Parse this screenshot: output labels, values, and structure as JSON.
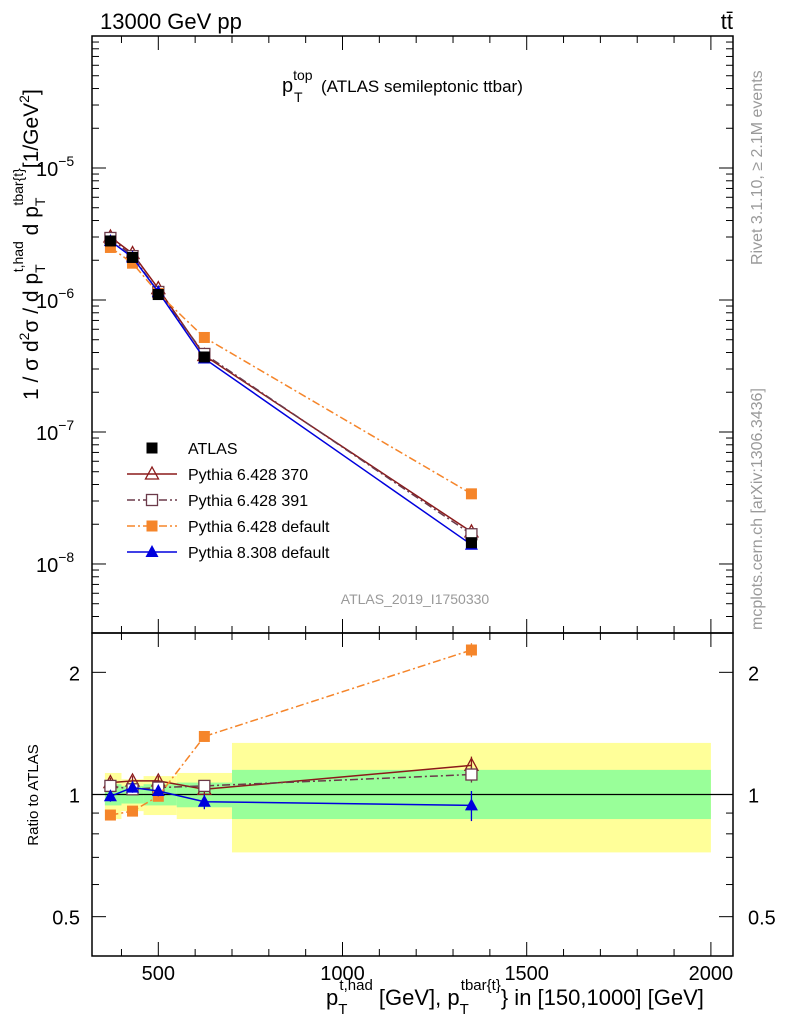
{
  "header": {
    "beam": "13000 GeV pp",
    "process": "tt̄"
  },
  "side_labels": {
    "rivet": "Rivet 3.1.10, ≥ 2.1M events",
    "mcplots": "mcplots.cern.ch [arXiv:1306.3436]"
  },
  "colors": {
    "atlas": "#000000",
    "py6_370": "#8b1a1a",
    "py6_391": "#6b3a4a",
    "py6_default": "#f5852a",
    "py8_default": "#0000dd",
    "band_inner": "#99ff99",
    "band_outer": "#ffff99",
    "watermark": "#9a9a9a"
  },
  "chart_data": [
    {
      "panel": "main",
      "type": "line",
      "scale": "log",
      "title_main": "p",
      "title_sup": "top",
      "title_sub": "T",
      "title_rest": "(ATLAS semileptonic ttbar)",
      "analysis_id": "ATLAS_2019_I1750330",
      "ylabel": "1 / σ d²σ / d p_T^{t,had} d p_T^{tbar{t}} [1/GeV²]",
      "ylabel_parts": {
        "a": "1 / σ d",
        "a_sup": "2",
        "b": "σ / d p",
        "b_sub": "T",
        "b_sup": "t,had",
        "c": " d p",
        "c_sub": "T",
        "c_sup": "tbar{t}",
        "d": "[1/GeV",
        "d_sup": "2",
        "e": "]"
      },
      "xlim": [
        320,
        2060
      ],
      "ylim": [
        3e-09,
        0.0001
      ],
      "yticks": [
        {
          "value": 1e-08,
          "base": "10",
          "exp": "−8"
        },
        {
          "value": 1e-07,
          "base": "10",
          "exp": "−7"
        },
        {
          "value": 1e-06,
          "base": "10",
          "exp": "−6"
        },
        {
          "value": 1e-05,
          "base": "10",
          "exp": "−5"
        }
      ],
      "legend_position": "bottom-left",
      "series": [
        {
          "name": "ATLAS",
          "style": "data",
          "marker": "square-filled",
          "color": "#000000",
          "x": [
            370,
            430,
            500,
            625,
            1350
          ],
          "y": [
            2.8e-06,
            2.1e-06,
            1.1e-06,
            3.7e-07,
            1.45e-08
          ],
          "err": [
            1e-07,
            8e-08,
            5e-08,
            2e-09,
            1.5e-09
          ]
        },
        {
          "name": "Pythia 6.428 370",
          "style": "solid",
          "marker": "triangle-open",
          "color": "#8b1a1a",
          "x": [
            370,
            430,
            500,
            625,
            1350
          ],
          "y": [
            3e-06,
            2.25e-06,
            1.22e-06,
            3.8e-07,
            1.75e-08
          ]
        },
        {
          "name": "Pythia 6.428 391",
          "style": "dashdot",
          "marker": "square-open",
          "color": "#6b3a4a",
          "x": [
            370,
            430,
            500,
            625,
            1350
          ],
          "y": [
            2.95e-06,
            2.15e-06,
            1.15e-06,
            3.9e-07,
            1.68e-08
          ]
        },
        {
          "name": "Pythia 6.428 default",
          "style": "dashdot",
          "marker": "square-filled",
          "color": "#f5852a",
          "x": [
            370,
            430,
            500,
            625,
            1350
          ],
          "y": [
            2.5e-06,
            1.9e-06,
            1.12e-06,
            5.2e-07,
            3.4e-08
          ]
        },
        {
          "name": "Pythia 8.308 default",
          "style": "solid",
          "marker": "triangle-filled",
          "color": "#0000dd",
          "x": [
            370,
            430,
            500,
            625,
            1350
          ],
          "y": [
            2.8e-06,
            2.1e-06,
            1.15e-06,
            3.6e-07,
            1.4e-08
          ]
        }
      ]
    },
    {
      "panel": "ratio",
      "type": "line",
      "scale": "log",
      "ylabel": "Ratio to ATLAS",
      "xlabel_parts": {
        "a": "p",
        "a_sub": "T",
        "a_sup": "t,had",
        "b": " [GeV], p",
        "b_sub": "T",
        "b_sup": "tbar{t}",
        "c": "} in [150,1000] [GeV]"
      },
      "xlim": [
        320,
        2060
      ],
      "ylim": [
        0.4,
        2.5
      ],
      "yticks": [
        0.5,
        1,
        2
      ],
      "ytick_labels": [
        "0.5",
        "1",
        "2"
      ],
      "xticks": [
        500,
        1000,
        1500,
        2000
      ],
      "xtick_labels": [
        "500",
        "1000",
        "1500",
        "2000"
      ],
      "bins": [
        {
          "lo": 355,
          "hi": 400,
          "inner": [
            0.94,
            1.06
          ],
          "outer": [
            0.87,
            1.13
          ]
        },
        {
          "lo": 400,
          "hi": 460,
          "inner": [
            0.95,
            1.05
          ],
          "outer": [
            0.91,
            1.09
          ]
        },
        {
          "lo": 460,
          "hi": 550,
          "inner": [
            0.94,
            1.06
          ],
          "outer": [
            0.89,
            1.11
          ]
        },
        {
          "lo": 550,
          "hi": 700,
          "inner": [
            0.93,
            1.07
          ],
          "outer": [
            0.87,
            1.13
          ]
        },
        {
          "lo": 700,
          "hi": 2000,
          "inner": [
            0.87,
            1.15
          ],
          "outer": [
            0.72,
            1.34
          ]
        }
      ],
      "series": [
        {
          "name": "Pythia 6.428 370",
          "style": "solid",
          "marker": "triangle-open",
          "color": "#8b1a1a",
          "x": [
            370,
            430,
            500,
            625,
            1350
          ],
          "y": [
            1.07,
            1.08,
            1.08,
            1.03,
            1.18
          ],
          "err": [
            0.03,
            0.03,
            0.03,
            0.04,
            0.06
          ]
        },
        {
          "name": "Pythia 6.428 391",
          "style": "dashdot",
          "marker": "square-open",
          "color": "#6b3a4a",
          "x": [
            370,
            430,
            500,
            625,
            1350
          ],
          "y": [
            1.05,
            1.03,
            1.04,
            1.05,
            1.12
          ],
          "err": [
            0.02,
            0.02,
            0.02,
            0.03,
            0.05
          ]
        },
        {
          "name": "Pythia 6.428 default",
          "style": "dashdot",
          "marker": "square-filled",
          "color": "#f5852a",
          "x": [
            370,
            430,
            500,
            625,
            1350
          ],
          "y": [
            0.89,
            0.91,
            0.99,
            1.39,
            2.27
          ],
          "err": [
            0.02,
            0.02,
            0.02,
            0.04,
            0.09
          ]
        },
        {
          "name": "Pythia 8.308 default",
          "style": "solid",
          "marker": "triangle-filled",
          "color": "#0000dd",
          "x": [
            370,
            430,
            500,
            625,
            1350
          ],
          "y": [
            0.99,
            1.04,
            1.02,
            0.96,
            0.94
          ],
          "err": [
            0.03,
            0.03,
            0.03,
            0.04,
            0.08
          ]
        }
      ]
    }
  ]
}
